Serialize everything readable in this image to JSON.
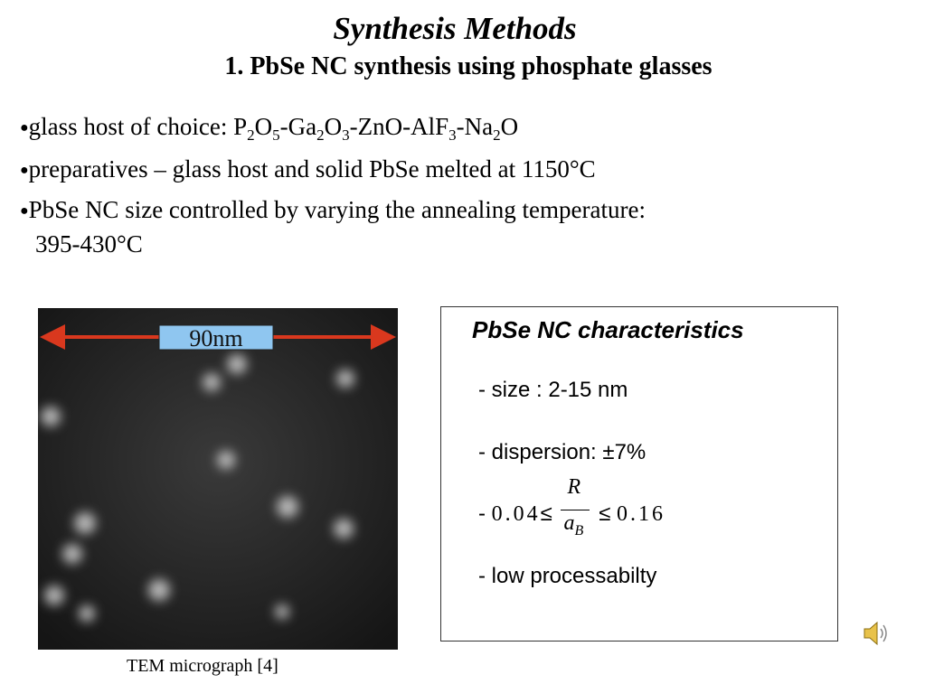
{
  "header": {
    "title": "Synthesis Methods",
    "subtitle": "1. PbSe NC synthesis using phosphate glasses"
  },
  "bullets": [
    {
      "segments": [
        {
          "text": "glass host of choice:  P"
        },
        {
          "sub": "2"
        },
        {
          "text": "O"
        },
        {
          "sub": "5"
        },
        {
          "text": "-Ga"
        },
        {
          "sub": "2"
        },
        {
          "text": "O"
        },
        {
          "sub": "3"
        },
        {
          "text": "-ZnO-AlF"
        },
        {
          "sub": "3"
        },
        {
          "text": "-Na"
        },
        {
          "sub": "2"
        },
        {
          "text": "O"
        }
      ]
    },
    {
      "segments": [
        {
          "text": "preparatives – glass host and solid PbSe melted at 1150°C"
        }
      ]
    },
    {
      "segments": [
        {
          "text": "PbSe NC size controlled by varying the annealing temperature:"
        },
        {
          "line": "395-430°C"
        }
      ]
    }
  ],
  "figure": {
    "scale_label": "90nm",
    "caption": "TEM micrograph [4]"
  },
  "panel": {
    "title": "PbSe NC characteristics",
    "size": "- size : 2-15 nm",
    "dispersion": "- dispersion: ±7%",
    "ratio": {
      "dash": "-",
      "low": "0.04",
      "le1": "≤",
      "num": "R",
      "den": "a",
      "den_sub": "B",
      "le2": "≤",
      "high": "0.16"
    },
    "processability": "- low processabilty"
  }
}
